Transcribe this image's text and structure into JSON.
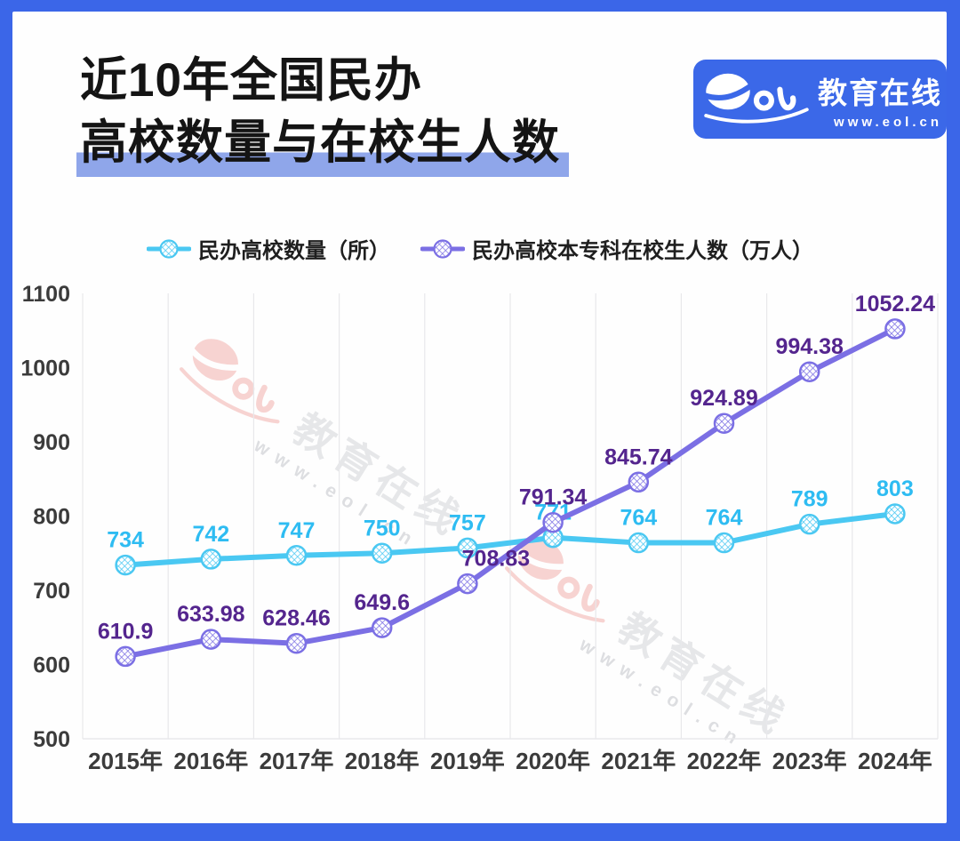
{
  "frame": {
    "color": "#3B66E8"
  },
  "header": {
    "title_line1": "近10年全国民办",
    "title_line2": "高校数量与在校生人数",
    "highlight_color": "#8FA6EA"
  },
  "brand": {
    "name": "教育在线",
    "url": "www.eol.cn",
    "bg_color": "#3B68E8"
  },
  "watermark": {
    "brand": "教育在线",
    "url": "www.eol.cn"
  },
  "chart_data": {
    "type": "line",
    "categories": [
      "2015年",
      "2016年",
      "2017年",
      "2018年",
      "2019年",
      "2020年",
      "2021年",
      "2022年",
      "2023年",
      "2024年"
    ],
    "series": [
      {
        "name": "民办高校数量（所）",
        "color": "#4AC8F2",
        "label_color": "#2EBCF2",
        "values": [
          734,
          742,
          747,
          750,
          757,
          771,
          764,
          764,
          789,
          803
        ],
        "label_dx": [
          0,
          0,
          0,
          0,
          0,
          0,
          0,
          0,
          0,
          0
        ]
      },
      {
        "name": "民办高校本专科在校生人数（万人）",
        "color": "#7B6FE4",
        "label_color": "#54258E",
        "values": [
          610.9,
          633.98,
          628.46,
          649.6,
          708.83,
          791.34,
          845.74,
          924.89,
          994.38,
          1052.24
        ],
        "label_dx": [
          0,
          0,
          0,
          0,
          32,
          0,
          0,
          0,
          0,
          0
        ]
      }
    ],
    "ylim": [
      500,
      1100
    ],
    "yticks": [
      1100,
      1000,
      900,
      800,
      700,
      600,
      500
    ],
    "grid": "vertical",
    "legend_position": "top",
    "axis_color": "#3B3B3B",
    "grid_color": "#E8E8EB"
  }
}
